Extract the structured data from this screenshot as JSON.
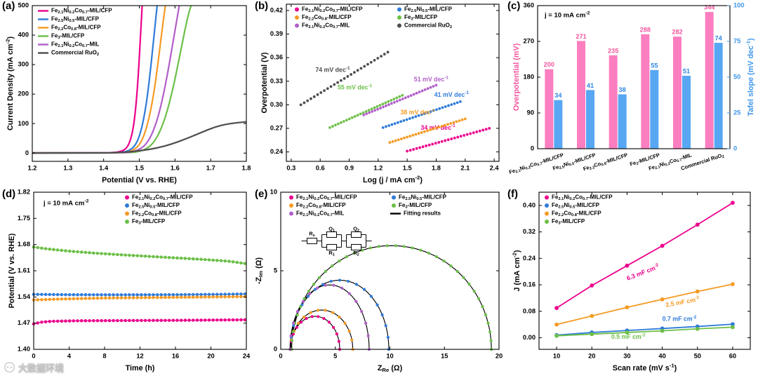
{
  "watermark": {
    "text": "大数据环境"
  },
  "chart_data": [
    {
      "panel_label": "(a)",
      "kind": "lsv",
      "type": "line",
      "xlabel": "Potential (V vs. RHE)",
      "ylabel": "Current Density (mA cm^{-2})",
      "xlim": [
        1.2,
        1.8
      ],
      "ylim": [
        -28,
        500
      ],
      "xticks": [
        1.2,
        1.3,
        1.4,
        1.5,
        1.6,
        1.7,
        1.8
      ],
      "xdp": 1,
      "yticks": [
        0,
        100,
        200,
        300,
        400,
        500
      ],
      "ydp": 0,
      "legend_pos": "top-left",
      "series": [
        {
          "name": "Fe_{2.1}Ni_{0.2}Co_{0.7}-MIL/CFP",
          "color": "#ec008c",
          "points": [
            [
              1.2,
              1
            ],
            [
              1.4,
              1
            ],
            [
              1.43,
              2
            ],
            [
              1.45,
              6
            ],
            [
              1.462,
              14
            ],
            [
              1.472,
              32
            ],
            [
              1.482,
              75
            ],
            [
              1.49,
              150
            ],
            [
              1.497,
              260
            ],
            [
              1.503,
              390
            ],
            [
              1.508,
              500
            ]
          ]
        },
        {
          "name": "Fe_{2.5}Ni_{0.5}-MIL/CFP",
          "color": "#2f7bd9",
          "points": [
            [
              1.2,
              1
            ],
            [
              1.43,
              1
            ],
            [
              1.455,
              3
            ],
            [
              1.47,
              8
            ],
            [
              1.485,
              20
            ],
            [
              1.498,
              48
            ],
            [
              1.51,
              100
            ],
            [
              1.522,
              185
            ],
            [
              1.533,
              300
            ],
            [
              1.543,
              420
            ],
            [
              1.55,
              500
            ]
          ]
        },
        {
          "name": "Fe_{2.2}Co_{0.8}-MIL/CFP",
          "color": "#f59a23",
          "points": [
            [
              1.2,
              1
            ],
            [
              1.44,
              1
            ],
            [
              1.465,
              3
            ],
            [
              1.48,
              8
            ],
            [
              1.495,
              20
            ],
            [
              1.51,
              48
            ],
            [
              1.525,
              105
            ],
            [
              1.54,
              195
            ],
            [
              1.553,
              310
            ],
            [
              1.565,
              430
            ],
            [
              1.573,
              500
            ]
          ]
        },
        {
          "name": "Fe_{3}-MIL/CFP",
          "color": "#6cbf47",
          "points": [
            [
              1.2,
              1
            ],
            [
              1.465,
              1
            ],
            [
              1.49,
              3
            ],
            [
              1.51,
              9
            ],
            [
              1.53,
              22
            ],
            [
              1.55,
              52
            ],
            [
              1.572,
              115
            ],
            [
              1.594,
              215
            ],
            [
              1.615,
              340
            ],
            [
              1.635,
              460
            ],
            [
              1.645,
              500
            ]
          ]
        },
        {
          "name": "Fe_{2.1}Ni_{0.2}Co_{0.7}-MIL",
          "color": "#b15fc9",
          "points": [
            [
              1.2,
              1
            ],
            [
              1.455,
              1
            ],
            [
              1.475,
              3
            ],
            [
              1.495,
              9
            ],
            [
              1.515,
              24
            ],
            [
              1.535,
              60
            ],
            [
              1.555,
              130
            ],
            [
              1.575,
              240
            ],
            [
              1.595,
              380
            ],
            [
              1.612,
              500
            ]
          ]
        },
        {
          "name": "Commercial RuO_{2}",
          "color": "#4d4d4d",
          "points": [
            [
              1.2,
              0
            ],
            [
              1.38,
              0
            ],
            [
              1.43,
              1
            ],
            [
              1.47,
              4
            ],
            [
              1.51,
              9
            ],
            [
              1.55,
              17
            ],
            [
              1.59,
              30
            ],
            [
              1.63,
              48
            ],
            [
              1.67,
              68
            ],
            [
              1.71,
              88
            ],
            [
              1.75,
              100
            ],
            [
              1.8,
              106
            ]
          ]
        }
      ]
    },
    {
      "panel_label": "(b)",
      "kind": "tafel",
      "type": "scatter",
      "xlabel": "Log (j / mA cm^{-2})",
      "ylabel": "Overpotential (V)",
      "xlim": [
        0.25,
        2.45
      ],
      "ylim": [
        0.228,
        0.428
      ],
      "xticks": [
        0.3,
        0.6,
        0.9,
        1.2,
        1.5,
        1.8,
        2.1,
        2.4
      ],
      "xdp": 1,
      "yticks": [
        0.24,
        0.27,
        0.3,
        0.33,
        0.36,
        0.39,
        0.42
      ],
      "ydp": 2,
      "legend_pos": "top",
      "series": [
        {
          "name": "Fe_{2.1}Ni_{0.2}Co_{0.7}-MIL/CFP",
          "color": "#ec008c",
          "slope_mV_dec": 34,
          "seg": [
            1.5,
            0.241,
            2.35,
            0.27
          ],
          "slope_label": "34 mV dec^{-1}",
          "label_pos": [
            1.64,
            0.2705
          ]
        },
        {
          "name": "Fe_{2.5}Ni_{0.5}-MIL/CFP",
          "color": "#2f7bd9",
          "slope_mV_dec": 41,
          "seg": [
            1.25,
            0.271,
            2.05,
            0.304
          ],
          "slope_label": "41 mV dec^{-1}",
          "label_pos": [
            1.78,
            0.3125
          ]
        },
        {
          "name": "Fe_{2.2}Co_{0.8}-MIL/CFP",
          "color": "#f59a23",
          "slope_mV_dec": 38,
          "seg": [
            1.32,
            0.252,
            2.1,
            0.282
          ],
          "slope_label": "38 mV dec^{-1}",
          "label_pos": [
            1.43,
            0.29
          ]
        },
        {
          "name": "Fe_{3}-MIL/CFP",
          "color": "#6cbf47",
          "slope_mV_dec": 55,
          "seg": [
            0.7,
            0.271,
            1.45,
            0.312
          ],
          "slope_label": "55 mV dec^{-1}",
          "label_pos": [
            0.78,
            0.3215
          ]
        },
        {
          "name": "Fe_{2.1}Ni_{0.2}Co_{0.7}-MIL",
          "color": "#b15fc9",
          "slope_mV_dec": 51,
          "seg": [
            1.05,
            0.287,
            1.8,
            0.325
          ],
          "slope_label": "51 mV dec^{-1}",
          "label_pos": [
            1.57,
            0.332
          ]
        },
        {
          "name": "Commercial RuO_{2}",
          "color": "#4d4d4d",
          "slope_mV_dec": 74,
          "seg": [
            0.4,
            0.3,
            1.3,
            0.367
          ],
          "slope_label": "74 mV dec^{-1}",
          "label_pos": [
            0.55,
            0.344
          ]
        }
      ]
    },
    {
      "panel_label": "(c)",
      "kind": "bars",
      "type": "bar",
      "annotation": "j = 10 mA cm^{-2}",
      "ylabel_left": "Overpotential (mV)",
      "ylabel_right": "Tafel slope (mV dec^{-1})",
      "ylim_left": [
        0,
        360
      ],
      "yticks_left": [
        0,
        90,
        180,
        270,
        360
      ],
      "ylim_right": [
        0,
        100
      ],
      "yticks_right": [
        0,
        25,
        50,
        75,
        100
      ],
      "categories": [
        "Fe_{2.1}Ni_{0.2}Co_{0.7}-MIL/CFP",
        "Fe_{2.5}Ni_{0.5}-MIL/CFP",
        "Fe_{2.2}Co_{0.8}-MIL/CFP",
        "Fe_{3}-MIL/CFP",
        "Fe_{2.1}Ni_{0.2}Co_{0.7}-MIL",
        "Commercial RuO_{2}"
      ],
      "series": [
        {
          "name": "Overpotential (mV)",
          "color": "#fb7ec0",
          "values": [
            200,
            271,
            235,
            288,
            282,
            344
          ],
          "value_color": "#f4569f"
        },
        {
          "name": "Tafel slope (mV dec^{-1})",
          "color": "#57a7f2",
          "values": [
            34,
            41,
            38,
            55,
            51,
            74
          ],
          "value_color": "#2f86e0"
        }
      ],
      "axis_colors": {
        "left": "#f4569f",
        "right": "#3d95e8"
      }
    },
    {
      "panel_label": "(d)",
      "kind": "stability",
      "type": "line",
      "annotation": "j = 10 mA cm^{-2}",
      "xlabel": "Time (h)",
      "ylabel": "Potential (V vs. RHE)",
      "xlim": [
        0,
        24
      ],
      "xticks": [
        0,
        4,
        8,
        12,
        16,
        20,
        24
      ],
      "xdp": 0,
      "ylim": [
        1.4,
        1.82
      ],
      "yticks": [
        1.4,
        1.47,
        1.54,
        1.61,
        1.68,
        1.75,
        1.82
      ],
      "ydp": 2,
      "legend_pos": "top-right",
      "series": [
        {
          "name": "Fe_{2.1}Ni_{0.2}Co_{0.7}-MIL/CFP",
          "color": "#ec008c",
          "points": [
            [
              0,
              1.468
            ],
            [
              0.8,
              1.4725
            ],
            [
              2,
              1.475
            ],
            [
              5,
              1.4763
            ],
            [
              10,
              1.477
            ],
            [
              16,
              1.4775
            ],
            [
              24,
              1.479
            ]
          ]
        },
        {
          "name": "Fe_{2.5}Ni_{0.5}-MIL/CFP",
          "color": "#2f7bd9",
          "points": [
            [
              0,
              1.547
            ],
            [
              4,
              1.546
            ],
            [
              10,
              1.5457
            ],
            [
              16,
              1.546
            ],
            [
              21,
              1.547
            ],
            [
              24,
              1.548
            ]
          ]
        },
        {
          "name": "Fe_{2.2}Co_{0.8}-MIL/CFP",
          "color": "#f59a23",
          "points": [
            [
              0,
              1.532
            ],
            [
              3,
              1.5345
            ],
            [
              8,
              1.537
            ],
            [
              14,
              1.5385
            ],
            [
              20,
              1.54
            ],
            [
              24,
              1.541
            ]
          ]
        },
        {
          "name": "Fe_{3}-MIL/CFP",
          "color": "#6cbf47",
          "points": [
            [
              0,
              1.6735
            ],
            [
              1.5,
              1.6685
            ],
            [
              4,
              1.6625
            ],
            [
              7,
              1.657
            ],
            [
              10,
              1.6525
            ],
            [
              13,
              1.6485
            ],
            [
              16,
              1.6445
            ],
            [
              19,
              1.6405
            ],
            [
              22,
              1.6355
            ],
            [
              24,
              1.629
            ]
          ]
        }
      ]
    },
    {
      "panel_label": "(e)",
      "kind": "nyquist",
      "type": "scatter",
      "xlabel": "Z_{Re} (Ω)",
      "ylabel": "-Z_{Im} (Ω)",
      "xlim": [
        0,
        20
      ],
      "xticks": [
        0,
        5,
        10,
        15,
        20
      ],
      "xdp": 0,
      "ylim": [
        0,
        10
      ],
      "yticks": [
        0,
        5,
        10
      ],
      "ydp": 0,
      "legend_pos": "top",
      "series": [
        {
          "name": "Fe_{2.1}Ni_{0.2}Co_{0.7}-MIL/CFP",
          "color": "#ec008c",
          "x_start": 0.9,
          "x_end": 5.4,
          "peak": 2.1
        },
        {
          "name": "Fe_{2.5}Ni_{0.5}-MIL/CFP",
          "color": "#2f7bd9",
          "x_start": 0.9,
          "x_end": 9.9,
          "peak": 4.4
        },
        {
          "name": "Fe_{2.2}Co_{0.8}-MIL/CFP",
          "color": "#f59a23",
          "x_start": 0.9,
          "x_end": 6.6,
          "peak": 2.5
        },
        {
          "name": "Fe_{3}-MIL/CFP",
          "color": "#6cbf47",
          "x_start": 1.0,
          "x_end": 19.3,
          "peak": 6.6
        },
        {
          "name": "Fe_{2.1}Ni_{0.2}Co_{0.7}-MIL",
          "color": "#b15fc9",
          "x_start": 0.85,
          "x_end": 8.1,
          "peak": 4.1
        }
      ],
      "fit": {
        "label": "Fitting results",
        "color": "#000000"
      },
      "circuit_labels": [
        "R_{s}",
        "Q_{1}",
        "R_{1}",
        "Q_{2}",
        "R_{2}"
      ]
    },
    {
      "panel_label": "(f)",
      "kind": "cdl",
      "type": "line",
      "xlabel": "Scan rate (mV s^{-1})",
      "ylabel": "J (mA cm^{-2})",
      "xlim": [
        5,
        65
      ],
      "xticks": [
        10,
        20,
        30,
        40,
        50,
        60
      ],
      "xdp": 0,
      "ylim": [
        -0.035,
        0.44
      ],
      "yticks": [
        0,
        0.08,
        0.16,
        0.24,
        0.32,
        0.4
      ],
      "ydp": 2,
      "legend_pos": "top-left",
      "x": [
        10,
        20,
        30,
        40,
        50,
        60
      ],
      "series": [
        {
          "name": "Fe_{2.1}Ni_{0.2}Co_{0.7}-MIL/CFP",
          "color": "#ec008c",
          "cdl_mF_cm2": 6.3,
          "values": [
            0.09,
            0.158,
            0.218,
            0.278,
            0.342,
            0.408
          ],
          "cdl_label": "6.3 mF cm^{-2}",
          "label_pos": [
            30,
            0.178
          ],
          "label_rot": -21
        },
        {
          "name": "Fe_{2.5}Ni_{0.5}-MIL/CFP",
          "color": "#2f7bd9",
          "cdl_mF_cm2": 0.7,
          "values": [
            0.008,
            0.016,
            0.022,
            0.028,
            0.034,
            0.041
          ],
          "cdl_label": "0.7 mF cm^{-2}",
          "label_pos": [
            40,
            0.056
          ],
          "label_rot": 0
        },
        {
          "name": "Fe_{2.2}Co_{0.8}-MIL/CFP",
          "color": "#f59a23",
          "cdl_mF_cm2": 2.5,
          "values": [
            0.04,
            0.066,
            0.092,
            0.116,
            0.14,
            0.162
          ],
          "cdl_label": "2.5 mF cm^{-2}",
          "label_pos": [
            41,
            0.098
          ],
          "label_rot": -10
        },
        {
          "name": "Fe_{3}-MIL/CFP",
          "color": "#6cbf47",
          "cdl_mF_cm2": 0.5,
          "values": [
            0.006,
            0.011,
            0.016,
            0.021,
            0.027,
            0.032
          ],
          "cdl_label": "0.5 mF cm^{-2}",
          "label_pos": [
            25.5,
            0.002
          ],
          "label_rot": 0
        }
      ]
    }
  ]
}
